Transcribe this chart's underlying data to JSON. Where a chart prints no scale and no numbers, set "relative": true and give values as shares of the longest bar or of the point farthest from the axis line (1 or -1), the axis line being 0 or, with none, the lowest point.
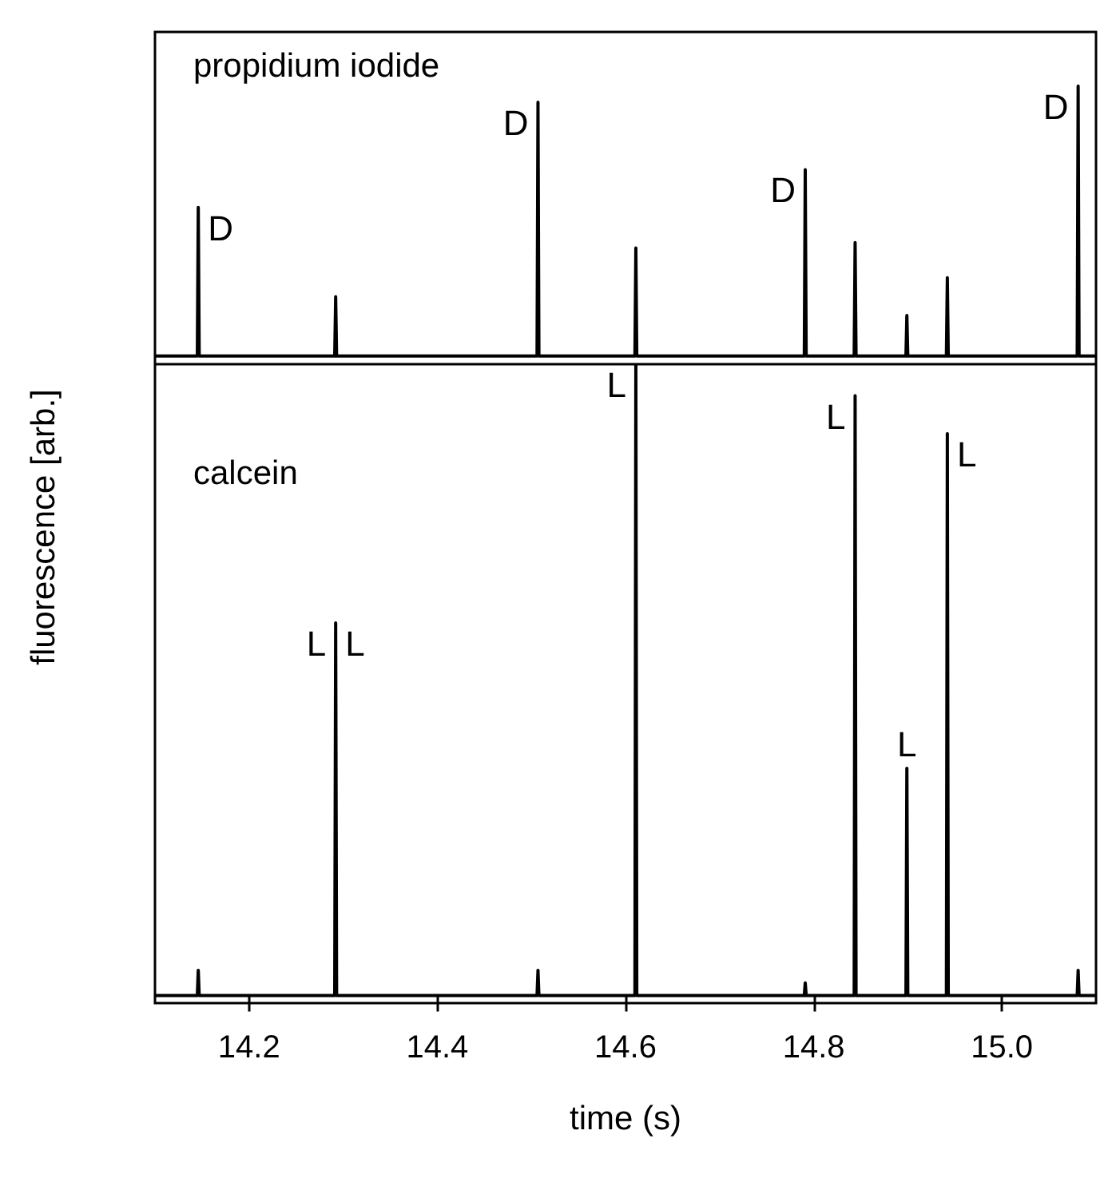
{
  "chart_data": [
    {
      "type": "line",
      "title": "propidium iodide",
      "relative": true,
      "tick_labels": false,
      "xlim": [
        14.1,
        15.1
      ],
      "color": "#000000",
      "marker": "none",
      "x": [
        14.1,
        14.145,
        14.146,
        14.147,
        14.291,
        14.292,
        14.293,
        14.506,
        14.507,
        14.508,
        14.61,
        14.611,
        14.612,
        14.79,
        14.791,
        14.792,
        14.843,
        14.844,
        14.845,
        14.898,
        14.899,
        14.9,
        14.941,
        14.942,
        14.943,
        15.08,
        15.081,
        15.082,
        15.1
      ],
      "values": [
        0,
        0,
        0.55,
        0,
        0,
        0.22,
        0,
        0,
        0.94,
        0,
        0,
        0.4,
        0,
        0,
        0.69,
        0,
        0,
        0.42,
        0,
        0,
        0.15,
        0,
        0,
        0.29,
        0,
        0,
        1,
        0,
        0
      ],
      "annotations": [
        {
          "text": "D",
          "x": 14.146,
          "y": 0.55
        },
        {
          "text": "D",
          "x": 14.507,
          "y": 0.94
        },
        {
          "text": "D",
          "x": 14.791,
          "y": 0.69
        },
        {
          "text": "D",
          "x": 15.081,
          "y": 1
        }
      ]
    },
    {
      "type": "line",
      "title": "calcein",
      "xlabel": "time (s)",
      "ylabel": "fluorescence [arb.]",
      "relative": true,
      "tick_labels": "x",
      "xlim": [
        14.1,
        15.1
      ],
      "xticks": [
        14.2,
        14.4,
        14.6,
        14.8,
        {
          "value": 15,
          "label": "15.0"
        }
      ],
      "color": "#000000",
      "marker": "none",
      "x": [
        14.1,
        14.145,
        14.146,
        14.147,
        14.291,
        14.292,
        14.293,
        14.506,
        14.507,
        14.508,
        14.61,
        14.611,
        14.612,
        14.79,
        14.791,
        14.792,
        14.843,
        14.844,
        14.845,
        14.898,
        14.899,
        14.9,
        14.941,
        14.942,
        14.943,
        15.08,
        15.081,
        15.082,
        15.1
      ],
      "values": [
        0,
        0,
        0.04,
        0,
        0,
        0.59,
        0,
        0,
        0.04,
        0,
        0,
        1,
        0,
        0,
        0.02,
        0,
        0,
        0.95,
        0,
        0,
        0.36,
        0,
        0,
        0.89,
        0,
        0,
        0.04,
        0,
        0
      ],
      "annotations": [
        {
          "text": "L",
          "x": 14.292,
          "y": 0.59
        },
        {
          "text": "L",
          "x": 14.292,
          "y": 0.59
        },
        {
          "text": "L",
          "x": 14.611,
          "y": 1
        },
        {
          "text": "L",
          "x": 14.844,
          "y": 0.95
        },
        {
          "text": "L",
          "x": 14.899,
          "y": 0.36
        },
        {
          "text": "L",
          "x": 14.942,
          "y": 0.89
        }
      ]
    }
  ]
}
